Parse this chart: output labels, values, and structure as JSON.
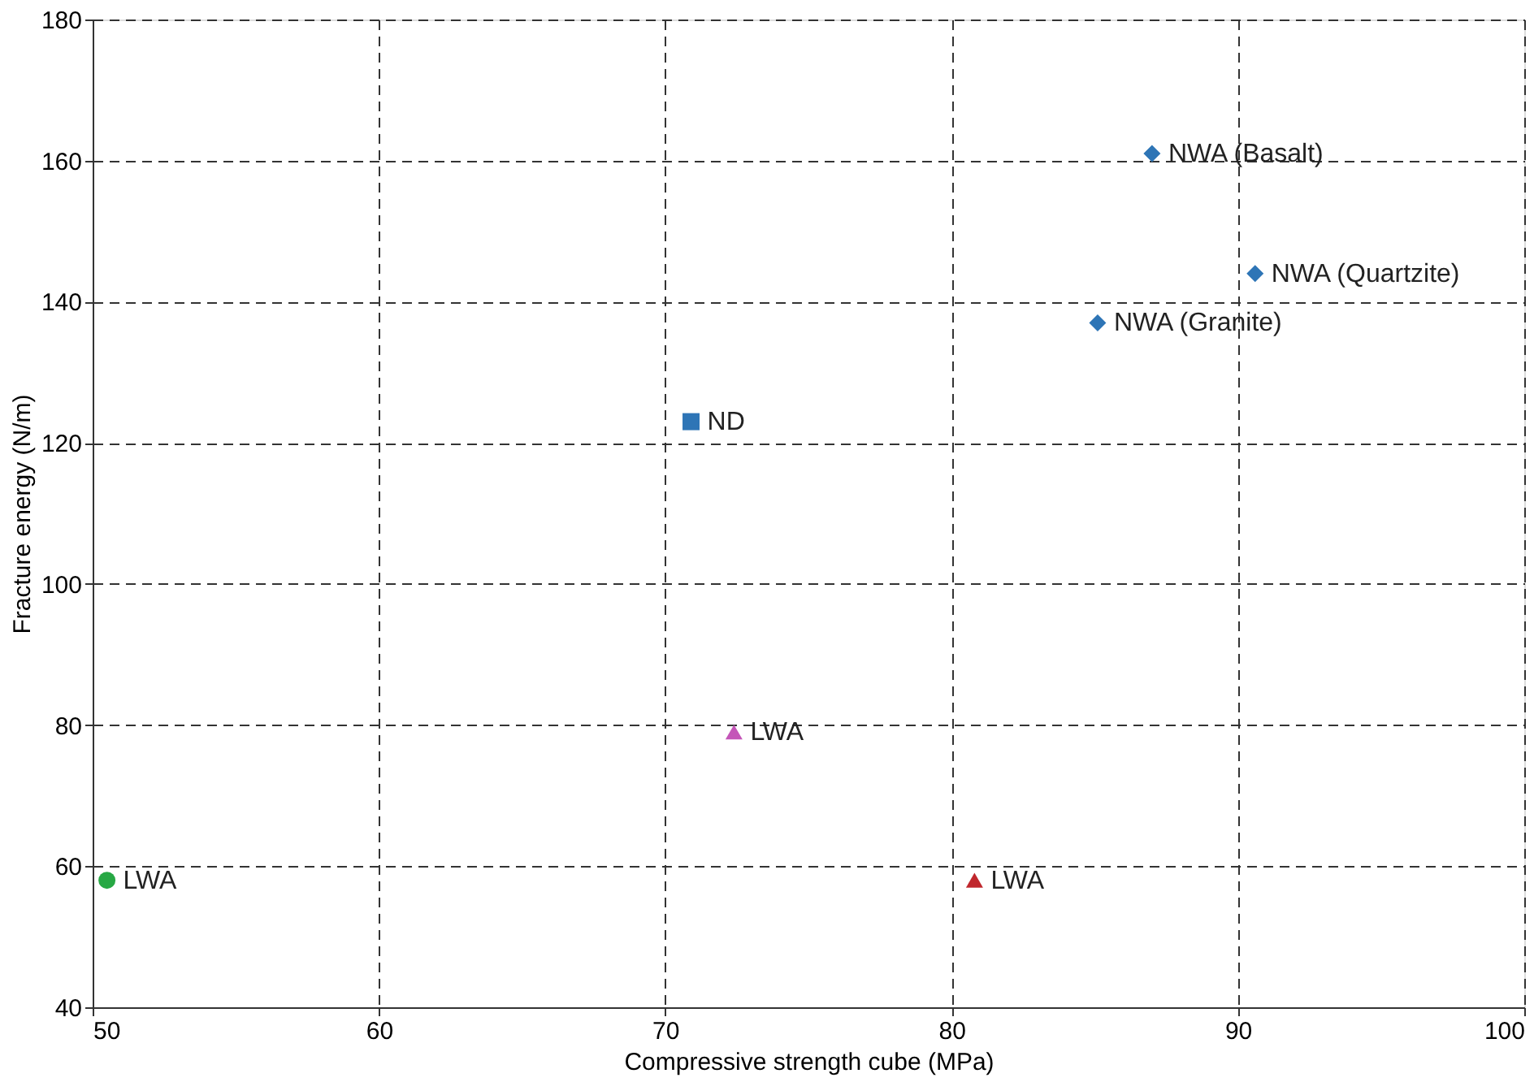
{
  "chart_data": {
    "type": "scatter",
    "xlabel": "Compressive strength cube (MPa)",
    "ylabel": "Fracture energy (N/m)",
    "xlim": [
      50,
      100
    ],
    "xticks": [
      50,
      60,
      70,
      80,
      90,
      100
    ],
    "ylim": [
      40,
      180
    ],
    "yticks": [
      40,
      60,
      80,
      100,
      120,
      140,
      160,
      180
    ],
    "grid": true,
    "series": [
      {
        "name": "NWA (Basalt)",
        "color": "#2e75b6",
        "marker": "diamond",
        "x": [
          87.0
        ],
        "values": [
          161
        ]
      },
      {
        "name": "NWA (Quartzite)",
        "color": "#2e75b6",
        "marker": "diamond",
        "x": [
          90.6
        ],
        "values": [
          144
        ]
      },
      {
        "name": "NWA (Granite)",
        "color": "#2e75b6",
        "marker": "diamond",
        "x": [
          85.1
        ],
        "values": [
          137
        ]
      },
      {
        "name": "ND",
        "color": "#2e75b6",
        "marker": "square",
        "x": [
          70.9
        ],
        "values": [
          123
        ]
      },
      {
        "name": "LWA",
        "color": "#c455b8",
        "marker": "triangle",
        "x": [
          72.4
        ],
        "values": [
          79
        ]
      },
      {
        "name": "LWA",
        "color": "#27a844",
        "marker": "circle",
        "x": [
          50.5
        ],
        "values": [
          58
        ]
      },
      {
        "name": "LWA",
        "color": "#c0272d",
        "marker": "triangle",
        "x": [
          80.8
        ],
        "values": [
          58
        ]
      }
    ]
  }
}
